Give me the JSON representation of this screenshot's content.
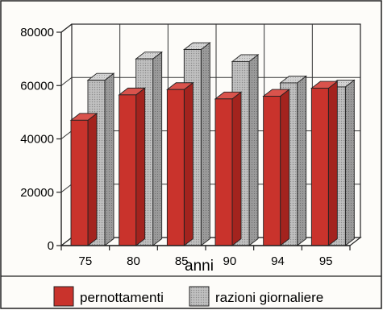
{
  "chart_data": {
    "type": "bar",
    "title": "",
    "xlabel": "anni",
    "ylabel": "",
    "categories": [
      "75",
      "80",
      "85",
      "90",
      "94",
      "95"
    ],
    "ylim": [
      0,
      80000
    ],
    "yticks": [
      "0",
      "20000",
      "40000",
      "60000",
      "80000"
    ],
    "grid": true,
    "legend_position": "bottom",
    "series": [
      {
        "name": "pernottamenti",
        "values": [
          47000,
          56500,
          58500,
          55000,
          56000,
          59000
        ],
        "color": "#c9332c"
      },
      {
        "name": "razioni giornaliere",
        "values": [
          62000,
          70000,
          73500,
          69000,
          61000,
          59500
        ],
        "color": "#b3b3b3"
      }
    ]
  }
}
